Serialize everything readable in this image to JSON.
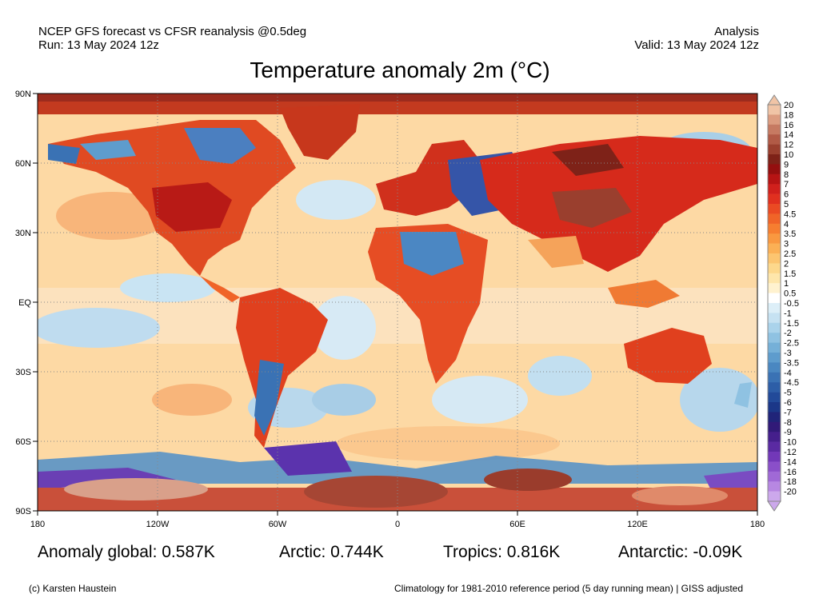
{
  "header": {
    "product_line": "NCEP GFS forecast vs CFSR reanalysis @0.5deg",
    "run_line": "Run: 13 May 2024 12z",
    "type_line": "Analysis",
    "valid_line": "Valid: 13 May 2024 12z"
  },
  "title": "Temperature anomaly 2m (°C)",
  "map": {
    "projection": "equirectangular",
    "lon_range": [
      -180,
      180
    ],
    "lat_range": [
      -90,
      90
    ],
    "lat_labels": [
      "90N",
      "60N",
      "30N",
      "EQ",
      "30S",
      "60S",
      "90S"
    ],
    "lon_labels": [
      "180",
      "120W",
      "60W",
      "0",
      "60E",
      "120E",
      "180"
    ],
    "gridlines": "dotted, every 30 degrees"
  },
  "colorbar": {
    "labels": [
      "20",
      "18",
      "16",
      "14",
      "12",
      "10",
      "9",
      "8",
      "7",
      "6",
      "5",
      "4.5",
      "4",
      "3.5",
      "3",
      "2.5",
      "2",
      "1.5",
      "1",
      "0.5",
      "-0.5",
      "-1",
      "-1.5",
      "-2",
      "-2.5",
      "-3",
      "-3.5",
      "-4",
      "-4.5",
      "-5",
      "-6",
      "-7",
      "-8",
      "-9",
      "-10",
      "-12",
      "-14",
      "-16",
      "-18",
      "-20"
    ],
    "colors": [
      "#f0c4a6",
      "#dc9c80",
      "#c67a62",
      "#b15a46",
      "#9a3f2e",
      "#7e2218",
      "#940f0f",
      "#b61414",
      "#d0201c",
      "#e0301f",
      "#ea4a23",
      "#f06428",
      "#f67e30",
      "#f99840",
      "#fbb055",
      "#fcc570",
      "#fdd88c",
      "#fee6ab",
      "#fff2cf",
      "#ffffff",
      "#ddeff8",
      "#c6e2f2",
      "#aad3eb",
      "#8fc2e2",
      "#75b0d8",
      "#5e9ccd",
      "#4a87c1",
      "#3a72b4",
      "#2d5ea7",
      "#224a99",
      "#1b3788",
      "#202479",
      "#311a78",
      "#451f8c",
      "#5a2aa2",
      "#7238b8",
      "#8a4fc9",
      "#a069d6",
      "#b787e2",
      "#cca8ec"
    ]
  },
  "stats": {
    "global": "Anomaly global: 0.587K",
    "arctic": "Arctic: 0.744K",
    "tropics": "Tropics: 0.816K",
    "antarctic": "Antarctic: -0.09K"
  },
  "footer": {
    "credit": "(c) Karsten Haustein",
    "note": "Climatology for 1981-2010 reference period (5 day running mean) | GISS adjusted"
  }
}
